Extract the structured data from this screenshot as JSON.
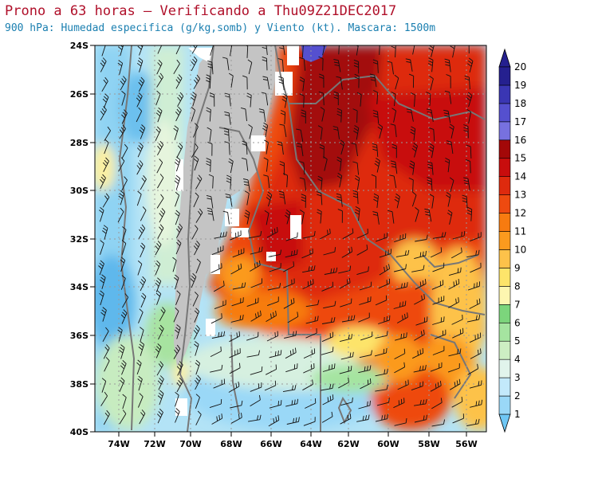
{
  "title": {
    "line1": "Prono a 63 horas – Verificando a Thu09Z21DEC2017",
    "line2": "900 hPa: Humedad especifica (g/kg,somb) y Viento (kt). Mascara: 1500m"
  },
  "map": {
    "type": "filled-contour-map",
    "lon_range": [
      -75,
      -55
    ],
    "lat_range": [
      -40,
      -24
    ],
    "lat_ticks": [
      "24S",
      "26S",
      "28S",
      "30S",
      "32S",
      "34S",
      "36S",
      "38S",
      "40S"
    ],
    "lon_ticks": [
      "74W",
      "72W",
      "70W",
      "68W",
      "66W",
      "64W",
      "62W",
      "60W",
      "58W",
      "56W"
    ],
    "grid": "dotted",
    "masked_region": "terrain above 1500m (gray)",
    "mask_color": "#c4c4c4",
    "border_color": "#777777"
  },
  "colorbar": {
    "labels": [
      "1",
      "2",
      "3",
      "4",
      "5",
      "6",
      "7",
      "8",
      "9",
      "10",
      "11",
      "12",
      "13",
      "14",
      "15",
      "16",
      "17",
      "18",
      "19",
      "20"
    ],
    "colors": [
      "#6fc7f5",
      "#9ad8f7",
      "#c3e9fb",
      "#e1f4ec",
      "#cdeec3",
      "#a5e4a0",
      "#7cd57c",
      "#fdf6b0",
      "#fde46a",
      "#fdc24a",
      "#fb9a1e",
      "#f77b10",
      "#ee4a10",
      "#de2a0e",
      "#c80d0d",
      "#a30808",
      "#7771df",
      "#5550cf",
      "#3a36b3",
      "#25208f"
    ]
  }
}
